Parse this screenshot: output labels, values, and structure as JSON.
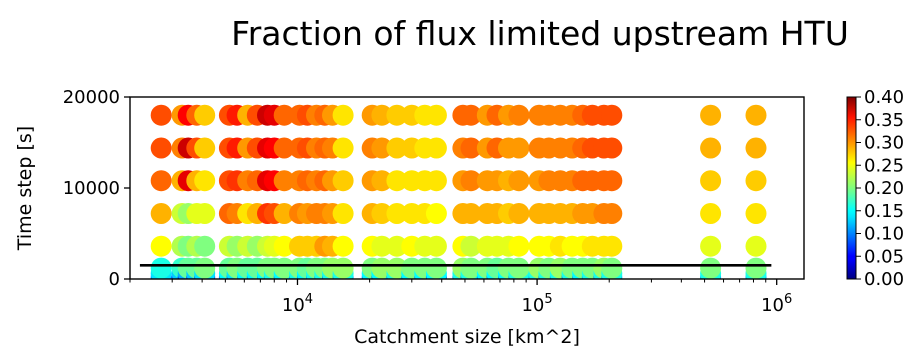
{
  "chart_data": {
    "type": "scatter",
    "title": "Fraction of flux limited upstream HTU",
    "xlabel": "Catchment size [km^2]",
    "ylabel": "Time step [s]",
    "x_scale": "log",
    "xlim": [
      2000,
      1300000
    ],
    "ylim": [
      0,
      20000
    ],
    "x_tick_labels": [
      {
        "base": "10",
        "exp": "4",
        "value": 10000
      },
      {
        "base": "10",
        "exp": "5",
        "value": 100000
      },
      {
        "base": "10",
        "exp": "6",
        "value": 1000000
      }
    ],
    "y_ticks": [
      0,
      10000,
      20000
    ],
    "y_tick_labels": [
      "0",
      "10000",
      "20000"
    ],
    "colorbar": {
      "colormap": "jet",
      "range": [
        0,
        0.4
      ],
      "ticks": [
        "0.00",
        "0.05",
        "0.10",
        "0.15",
        "0.20",
        "0.25",
        "0.30",
        "0.35",
        "0.40"
      ]
    },
    "reference_line": {
      "y": 1500,
      "x_start": 2200,
      "x_end": 950000,
      "color": "#000000"
    },
    "time_steps": [
      200,
      600,
      1200,
      3600,
      7200,
      10800,
      14400,
      18000
    ],
    "catchments": [
      {
        "x": 2700,
        "v": [
          0.1,
          0.14,
          0.16,
          0.25,
          0.28,
          0.31,
          0.32,
          0.32
        ]
      },
      {
        "x": 3300,
        "v": [
          0.08,
          0.13,
          0.17,
          0.22,
          0.23,
          0.28,
          0.3,
          0.29
        ]
      },
      {
        "x": 3500,
        "v": [
          0.06,
          0.12,
          0.19,
          0.2,
          0.21,
          0.36,
          0.37,
          0.35
        ]
      },
      {
        "x": 3800,
        "v": [
          0.07,
          0.13,
          0.19,
          0.22,
          0.24,
          0.28,
          0.32,
          0.31
        ]
      },
      {
        "x": 4100,
        "v": [
          0.09,
          0.14,
          0.2,
          0.2,
          0.24,
          0.26,
          0.27,
          0.27
        ]
      },
      {
        "x": 5200,
        "v": [
          0.1,
          0.15,
          0.19,
          0.23,
          0.31,
          0.32,
          0.32,
          0.32
        ]
      },
      {
        "x": 5600,
        "v": [
          0.09,
          0.14,
          0.2,
          0.21,
          0.3,
          0.33,
          0.34,
          0.34
        ]
      },
      {
        "x": 6200,
        "v": [
          0.11,
          0.15,
          0.19,
          0.23,
          0.26,
          0.3,
          0.29,
          0.28
        ]
      },
      {
        "x": 6800,
        "v": [
          0.1,
          0.15,
          0.19,
          0.21,
          0.28,
          0.31,
          0.32,
          0.32
        ]
      },
      {
        "x": 7500,
        "v": [
          0.12,
          0.15,
          0.2,
          0.23,
          0.33,
          0.36,
          0.36,
          0.37
        ]
      },
      {
        "x": 8000,
        "v": [
          0.12,
          0.16,
          0.2,
          0.24,
          0.32,
          0.35,
          0.35,
          0.36
        ]
      },
      {
        "x": 8800,
        "v": [
          0.11,
          0.15,
          0.2,
          0.25,
          0.28,
          0.3,
          0.31,
          0.31
        ]
      },
      {
        "x": 10200,
        "v": [
          0.12,
          0.16,
          0.2,
          0.27,
          0.3,
          0.3,
          0.31,
          0.31
        ]
      },
      {
        "x": 11000,
        "v": [
          0.11,
          0.15,
          0.19,
          0.27,
          0.29,
          0.31,
          0.32,
          0.32
        ]
      },
      {
        "x": 12000,
        "v": [
          0.12,
          0.16,
          0.2,
          0.27,
          0.3,
          0.3,
          0.3,
          0.3
        ]
      },
      {
        "x": 13000,
        "v": [
          0.12,
          0.16,
          0.2,
          0.29,
          0.3,
          0.31,
          0.31,
          0.31
        ]
      },
      {
        "x": 14000,
        "v": [
          0.11,
          0.16,
          0.21,
          0.28,
          0.29,
          0.29,
          0.3,
          0.29
        ]
      },
      {
        "x": 15500,
        "v": [
          0.12,
          0.16,
          0.21,
          0.25,
          0.26,
          0.27,
          0.26,
          0.26
        ]
      },
      {
        "x": 20500,
        "v": [
          0.1,
          0.15,
          0.2,
          0.25,
          0.28,
          0.29,
          0.3,
          0.29
        ]
      },
      {
        "x": 22500,
        "v": [
          0.1,
          0.15,
          0.21,
          0.24,
          0.27,
          0.28,
          0.29,
          0.28
        ]
      },
      {
        "x": 26000,
        "v": [
          0.11,
          0.16,
          0.21,
          0.24,
          0.26,
          0.26,
          0.27,
          0.27
        ]
      },
      {
        "x": 30000,
        "v": [
          0.11,
          0.15,
          0.2,
          0.25,
          0.26,
          0.26,
          0.27,
          0.27
        ]
      },
      {
        "x": 34000,
        "v": [
          0.11,
          0.15,
          0.2,
          0.24,
          0.26,
          0.26,
          0.26,
          0.26
        ]
      },
      {
        "x": 38000,
        "v": [
          0.1,
          0.15,
          0.2,
          0.24,
          0.25,
          0.26,
          0.26,
          0.26
        ]
      },
      {
        "x": 49000,
        "v": [
          0.11,
          0.16,
          0.21,
          0.25,
          0.28,
          0.29,
          0.3,
          0.31
        ]
      },
      {
        "x": 53000,
        "v": [
          0.11,
          0.16,
          0.2,
          0.23,
          0.28,
          0.3,
          0.31,
          0.31
        ]
      },
      {
        "x": 62000,
        "v": [
          0.1,
          0.15,
          0.2,
          0.24,
          0.28,
          0.29,
          0.29,
          0.29
        ]
      },
      {
        "x": 68000,
        "v": [
          0.1,
          0.15,
          0.19,
          0.24,
          0.28,
          0.29,
          0.31,
          0.31
        ]
      },
      {
        "x": 76000,
        "v": [
          0.11,
          0.15,
          0.2,
          0.24,
          0.27,
          0.28,
          0.29,
          0.29
        ]
      },
      {
        "x": 84000,
        "v": [
          0.11,
          0.16,
          0.2,
          0.25,
          0.28,
          0.29,
          0.29,
          0.3
        ]
      },
      {
        "x": 102000,
        "v": [
          0.12,
          0.16,
          0.21,
          0.25,
          0.28,
          0.29,
          0.3,
          0.3
        ]
      },
      {
        "x": 112000,
        "v": [
          0.11,
          0.16,
          0.2,
          0.25,
          0.28,
          0.3,
          0.3,
          0.3
        ]
      },
      {
        "x": 125000,
        "v": [
          0.12,
          0.16,
          0.21,
          0.26,
          0.28,
          0.3,
          0.3,
          0.3
        ]
      },
      {
        "x": 140000,
        "v": [
          0.1,
          0.16,
          0.2,
          0.25,
          0.28,
          0.3,
          0.3,
          0.3
        ]
      },
      {
        "x": 155000,
        "v": [
          0.11,
          0.15,
          0.2,
          0.25,
          0.29,
          0.31,
          0.31,
          0.31
        ]
      },
      {
        "x": 170000,
        "v": [
          0.12,
          0.16,
          0.2,
          0.26,
          0.29,
          0.31,
          0.32,
          0.32
        ]
      },
      {
        "x": 190000,
        "v": [
          0.11,
          0.16,
          0.21,
          0.26,
          0.3,
          0.31,
          0.32,
          0.32
        ]
      },
      {
        "x": 205000,
        "v": [
          0.12,
          0.16,
          0.2,
          0.26,
          0.3,
          0.31,
          0.32,
          0.32
        ]
      },
      {
        "x": 530000,
        "v": [
          0.12,
          0.16,
          0.2,
          0.24,
          0.26,
          0.27,
          0.28,
          0.28
        ]
      },
      {
        "x": 820000,
        "v": [
          0.12,
          0.16,
          0.2,
          0.24,
          0.26,
          0.27,
          0.28,
          0.28
        ]
      }
    ]
  }
}
